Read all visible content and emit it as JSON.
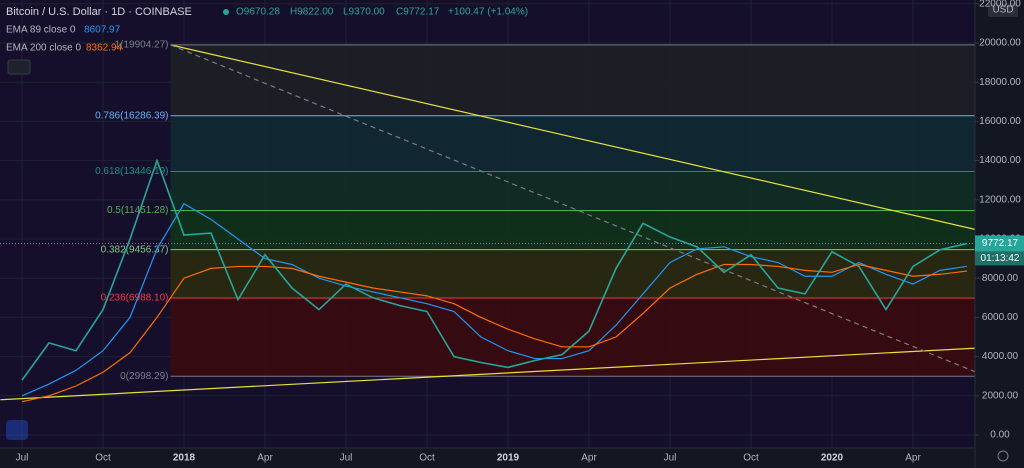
{
  "chart_data": {
    "type": "line",
    "title": "Bitcoin / U.S. Dollar · 1D · COINBASE",
    "ohlc_text": [
      "O9670.28",
      "H9822.00",
      "L9370.00",
      "C9772.17",
      "+100.47 (+1.04%)"
    ],
    "currency": "USD",
    "last_price_label": "9772.17",
    "countdown": "01:13:42",
    "categories": [
      "Jul",
      null,
      null,
      "Oct",
      null,
      null,
      "2018",
      null,
      null,
      "Apr",
      null,
      null,
      "Jul",
      null,
      null,
      "Oct",
      null,
      null,
      "2019",
      null,
      null,
      "Apr",
      null,
      null,
      "Jul",
      null,
      null,
      "Oct",
      null,
      null,
      "2020",
      null,
      null,
      "Apr",
      null,
      null
    ],
    "series": [
      {
        "color": "#26a69a",
        "values": [
          2800,
          4700,
          4300,
          6400,
          10000,
          14000,
          10200,
          10300,
          6900,
          9200,
          7500,
          6400,
          7700,
          7000,
          6600,
          6300,
          4000,
          3700,
          3450,
          3800,
          4100,
          5300,
          8500,
          10800,
          10100,
          9600,
          8300,
          9200,
          7500,
          7200,
          9350,
          8600,
          6400,
          8600,
          9450,
          9772.17
        ]
      },
      {
        "name": "EMA 89 close 0",
        "last_value_label": "8607.97",
        "color": "#2196f3",
        "values": [
          2000,
          2600,
          3300,
          4300,
          6000,
          9500,
          11800,
          11000,
          10000,
          9000,
          8700,
          8000,
          7600,
          7300,
          7000,
          6700,
          6300,
          5000,
          4300,
          3900,
          3900,
          4300,
          5600,
          7200,
          8800,
          9500,
          9600,
          9100,
          8800,
          8100,
          8100,
          8800,
          8200,
          7700,
          8400,
          8607.97
        ]
      },
      {
        "name": "EMA 200 close 0",
        "last_value_label": "8362.94",
        "color": "#ff6d00",
        "values": [
          1700,
          2000,
          2500,
          3200,
          4200,
          6000,
          8000,
          8500,
          8600,
          8600,
          8500,
          8100,
          7800,
          7500,
          7300,
          7100,
          6700,
          6000,
          5400,
          4900,
          4500,
          4500,
          5000,
          6200,
          7500,
          8200,
          8700,
          8700,
          8600,
          8400,
          8300,
          8700,
          8400,
          8100,
          8200,
          8362.94
        ]
      }
    ],
    "fib_levels": [
      {
        "value": 2998.29,
        "label": "0(2998.29)",
        "color": "#787b86",
        "fill": "#3a0a0e"
      },
      {
        "value": 6988.1,
        "label": "0.236(6988.10)",
        "color": "#f23645",
        "fill": "#2a2a10"
      },
      {
        "value": 9456.37,
        "label": "0.382(9456.37)",
        "color": "#81c784",
        "fill": "#10331a"
      },
      {
        "value": 11451.28,
        "label": "0.5(11451.28)",
        "color": "#4caf50",
        "fill": "#0f2f22"
      },
      {
        "value": 13446.19,
        "label": "0.618(13446.19)",
        "color": "#089981",
        "fill": "#0f2a33"
      },
      {
        "value": 16286.39,
        "label": "0.786(16286.39)",
        "color": "#64b5f6",
        "fill": "#1e2025"
      },
      {
        "value": 19904.27,
        "label": "1(19904.27)",
        "color": "#787b86"
      }
    ],
    "fib_start": 5.5,
    "trendlines": [
      {
        "color": "#e5e03a",
        "dashed": false,
        "points": [
          [
            5.5,
            19904.27
          ],
          [
            35.9,
            10300
          ]
        ]
      },
      {
        "color": "#e5e03a",
        "dashed": false,
        "points": [
          [
            -0.8,
            1800
          ],
          [
            35.6,
            4450
          ]
        ]
      },
      {
        "color": "#787b86",
        "dashed": true,
        "points": [
          [
            5.5,
            19904.27
          ],
          [
            35.6,
            3060
          ]
        ]
      }
    ],
    "ylim": [
      -663,
      22194
    ],
    "yticks": [
      {
        "value": 0,
        "label": "0.00"
      },
      {
        "value": 2000,
        "label": "2000.00"
      },
      {
        "value": 4000,
        "label": "4000.00"
      },
      {
        "value": 6000,
        "label": "6000.00"
      },
      {
        "value": 8000,
        "label": "8000.00"
      },
      {
        "value": 10000,
        "label": "10000.00"
      },
      {
        "value": 12000,
        "label": "12000.00"
      },
      {
        "value": 14000,
        "label": "14000.00"
      },
      {
        "value": 16000,
        "label": "16000.00"
      },
      {
        "value": 18000,
        "label": "18000.00"
      },
      {
        "value": 20000,
        "label": "20000.00"
      },
      {
        "value": 22000,
        "label": "22000.00"
      }
    ],
    "grid": true
  }
}
